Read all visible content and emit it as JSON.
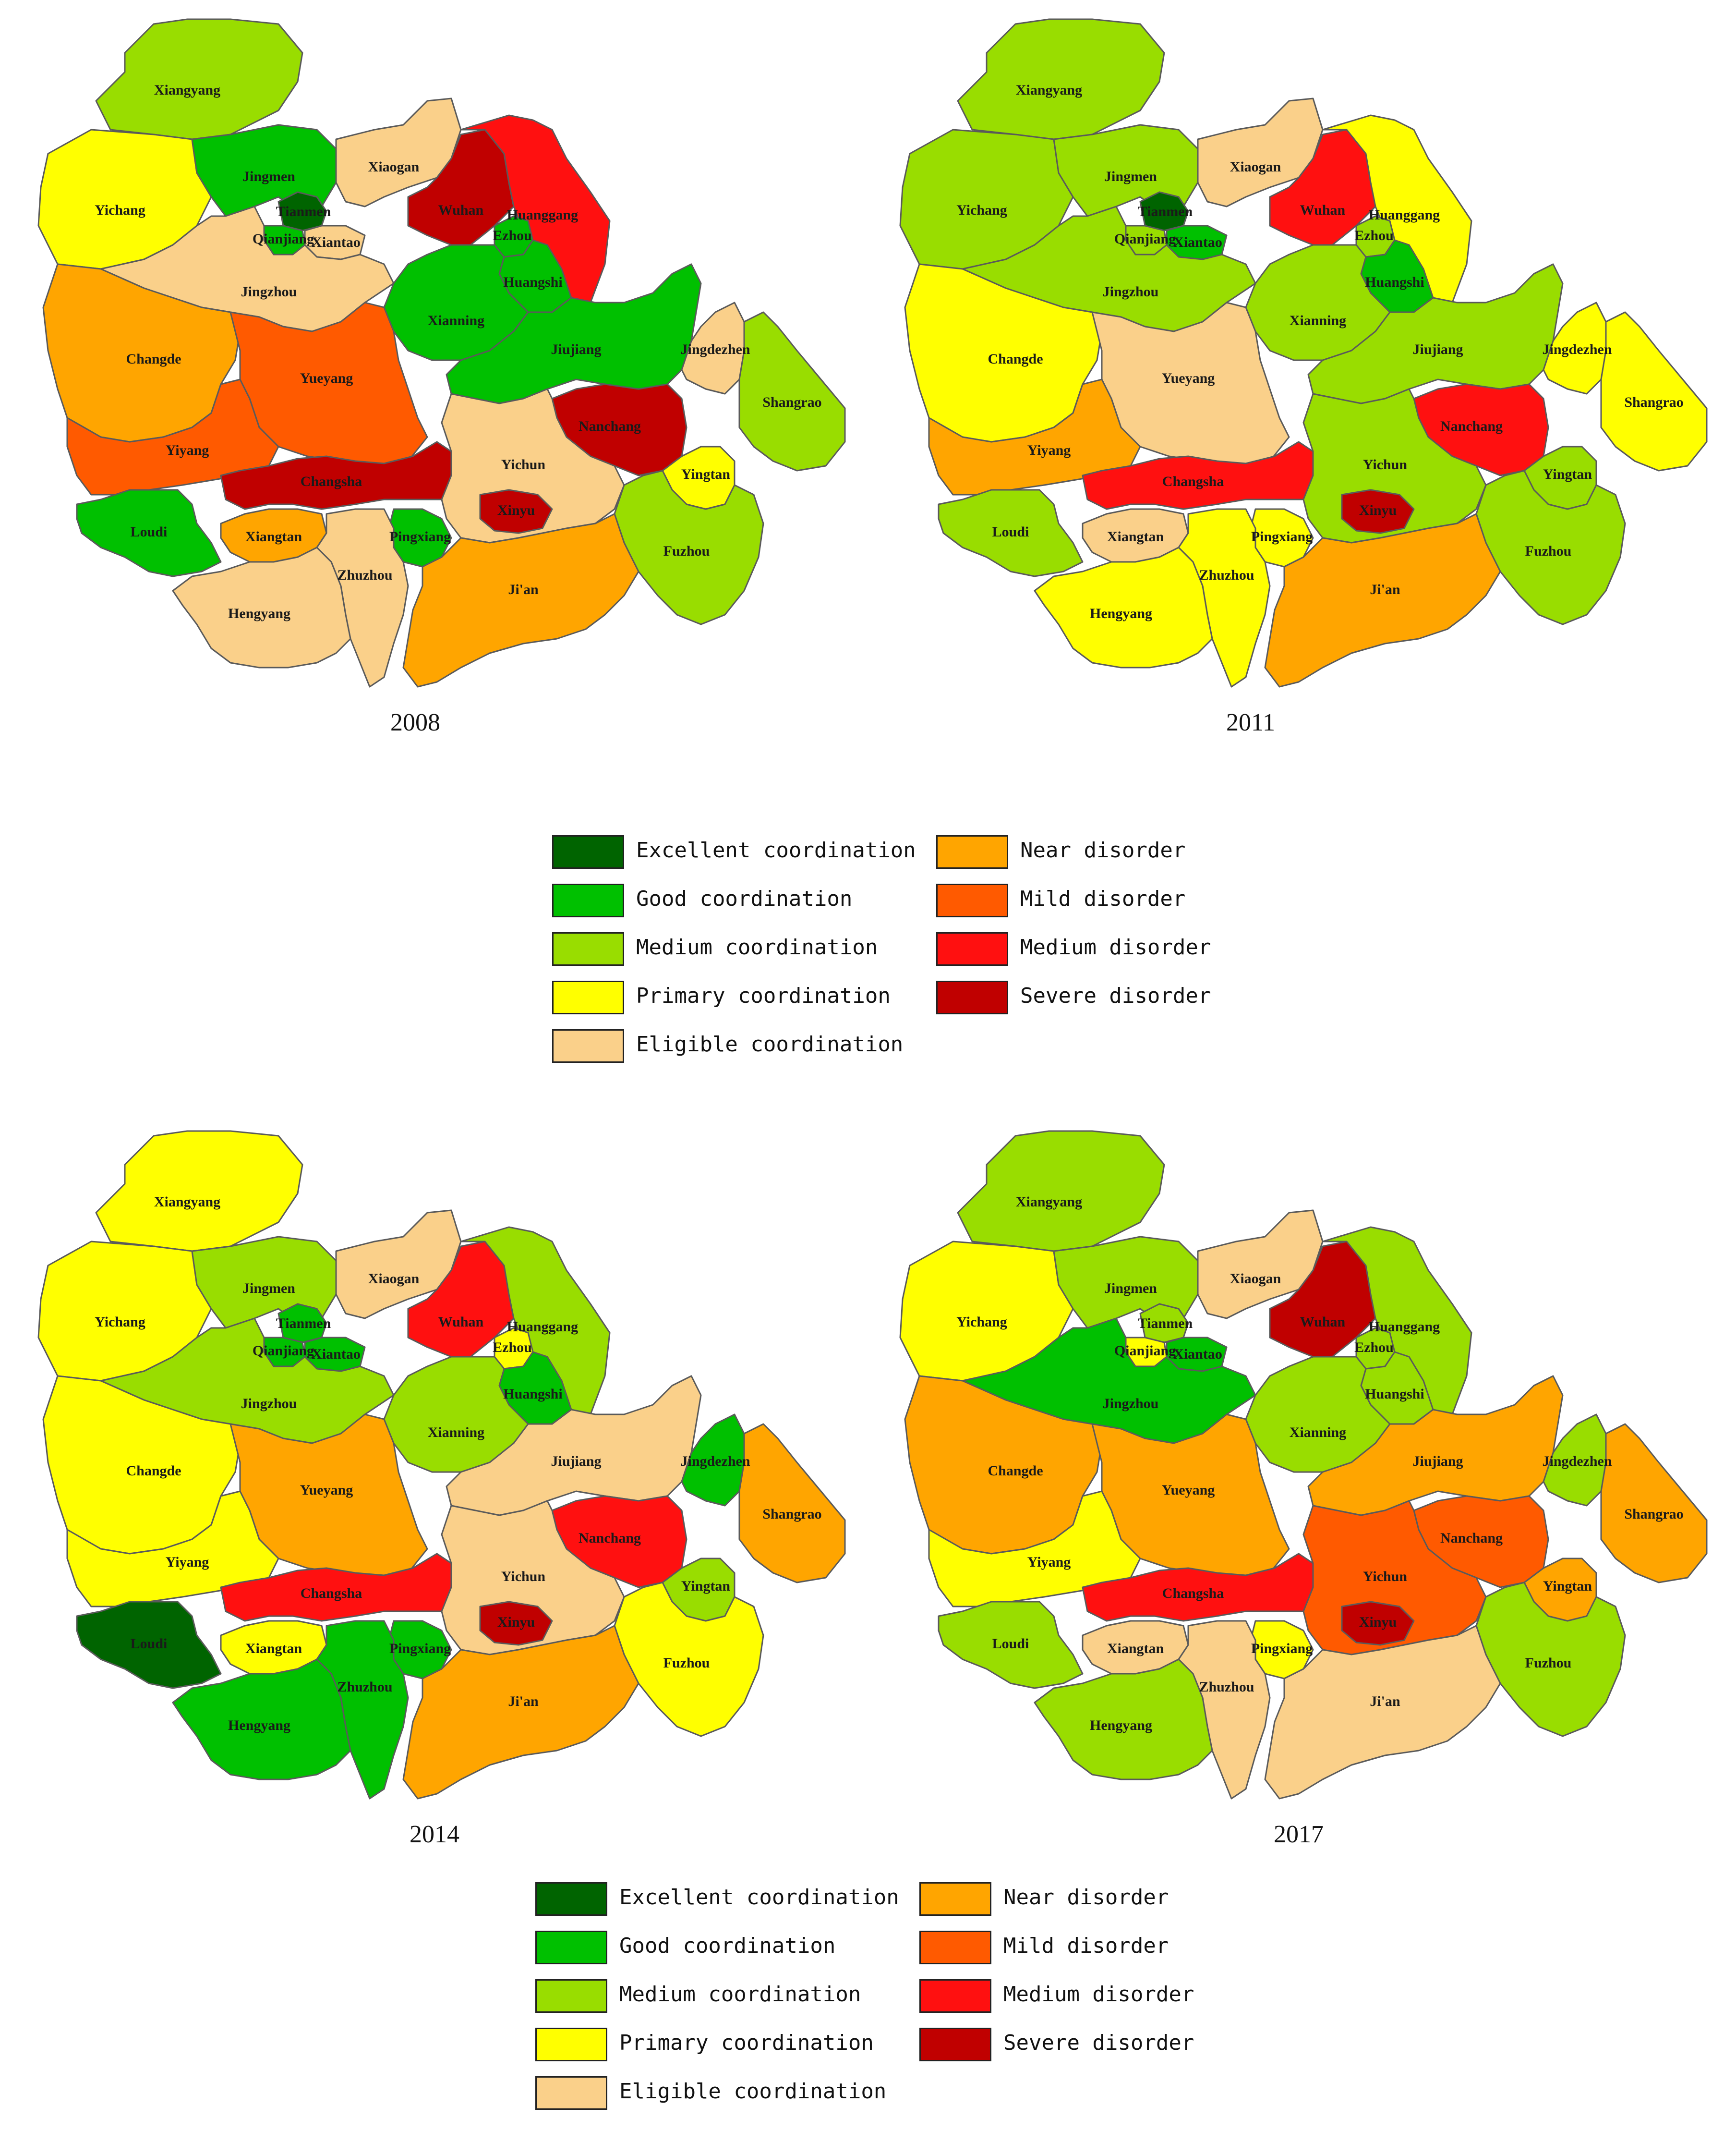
{
  "legend_items": [
    {
      "key": "excellent",
      "label": "Excellent coordination",
      "color": "#006400"
    },
    {
      "key": "good",
      "label": "Good coordination",
      "color": "#00c000"
    },
    {
      "key": "medium",
      "label": "Medium coordination",
      "color": "#99dd00"
    },
    {
      "key": "primary",
      "label": "Primary coordination",
      "color": "#ffff00"
    },
    {
      "key": "eligible",
      "label": "Eligible coordination",
      "color": "#fad08a"
    },
    {
      "key": "near",
      "label": "Near disorder",
      "color": "#ffa500"
    },
    {
      "key": "mild",
      "label": "Mild disorder",
      "color": "#ff5a00"
    },
    {
      "key": "mediumdis",
      "label": "Medium disorder",
      "color": "#ff1010"
    },
    {
      "key": "severe",
      "label": "Severe disorder",
      "color": "#c00000"
    }
  ],
  "cities": [
    "Xiangyang",
    "Yichang",
    "Jingmen",
    "Xiaogan",
    "Wuhan",
    "Huanggang",
    "Tianmen",
    "Qianjiang",
    "Xiantao",
    "Ezhou",
    "Huangshi",
    "Jingzhou",
    "Xianning",
    "Jiujiang",
    "Jingdezhen",
    "Shangrao",
    "Changde",
    "Yueyang",
    "Nanchang",
    "Yiyang",
    "Changsha",
    "Yichun",
    "Yingtan",
    "Loudi",
    "Xiangtan",
    "Pingxiang",
    "Xinyu",
    "Fuzhou",
    "Zhuzhou",
    "Hengyang",
    "Ji'an"
  ],
  "maps": [
    {
      "year": "2008",
      "classes": {
        "Xiangyang": "medium",
        "Yichang": "primary",
        "Jingmen": "good",
        "Xiaogan": "eligible",
        "Wuhan": "severe",
        "Huanggang": "mediumdis",
        "Tianmen": "excellent",
        "Qianjiang": "good",
        "Xiantao": "eligible",
        "Ezhou": "good",
        "Huangshi": "good",
        "Jingzhou": "eligible",
        "Xianning": "good",
        "Jiujiang": "good",
        "Jingdezhen": "eligible",
        "Shangrao": "medium",
        "Changde": "near",
        "Yueyang": "mild",
        "Nanchang": "severe",
        "Yiyang": "mild",
        "Changsha": "severe",
        "Yichun": "eligible",
        "Yingtan": "primary",
        "Loudi": "good",
        "Xiangtan": "near",
        "Pingxiang": "good",
        "Xinyu": "severe",
        "Fuzhou": "medium",
        "Zhuzhou": "eligible",
        "Hengyang": "eligible",
        "Ji'an": "near"
      }
    },
    {
      "year": "2011",
      "classes": {
        "Xiangyang": "medium",
        "Yichang": "medium",
        "Jingmen": "medium",
        "Xiaogan": "eligible",
        "Wuhan": "mediumdis",
        "Huanggang": "primary",
        "Tianmen": "excellent",
        "Qianjiang": "medium",
        "Xiantao": "good",
        "Ezhou": "medium",
        "Huangshi": "good",
        "Jingzhou": "medium",
        "Xianning": "medium",
        "Jiujiang": "medium",
        "Jingdezhen": "primary",
        "Shangrao": "primary",
        "Changde": "primary",
        "Yueyang": "eligible",
        "Nanchang": "mediumdis",
        "Yiyang": "near",
        "Changsha": "mediumdis",
        "Yichun": "medium",
        "Yingtan": "medium",
        "Loudi": "medium",
        "Xiangtan": "eligible",
        "Pingxiang": "primary",
        "Xinyu": "severe",
        "Fuzhou": "medium",
        "Zhuzhou": "primary",
        "Hengyang": "primary",
        "Ji'an": "near"
      }
    },
    {
      "year": "2014",
      "classes": {
        "Xiangyang": "primary",
        "Yichang": "primary",
        "Jingmen": "medium",
        "Xiaogan": "eligible",
        "Wuhan": "mediumdis",
        "Huanggang": "medium",
        "Tianmen": "good",
        "Qianjiang": "good",
        "Xiantao": "good",
        "Ezhou": "primary",
        "Huangshi": "good",
        "Jingzhou": "medium",
        "Xianning": "medium",
        "Jiujiang": "eligible",
        "Jingdezhen": "good",
        "Shangrao": "near",
        "Changde": "primary",
        "Yueyang": "near",
        "Nanchang": "mediumdis",
        "Yiyang": "primary",
        "Changsha": "mediumdis",
        "Yichun": "eligible",
        "Yingtan": "medium",
        "Loudi": "excellent",
        "Xiangtan": "primary",
        "Pingxiang": "good",
        "Xinyu": "severe",
        "Fuzhou": "primary",
        "Zhuzhou": "good",
        "Hengyang": "good",
        "Ji'an": "near"
      }
    },
    {
      "year": "2017",
      "classes": {
        "Xiangyang": "medium",
        "Yichang": "primary",
        "Jingmen": "medium",
        "Xiaogan": "eligible",
        "Wuhan": "severe",
        "Huanggang": "medium",
        "Tianmen": "medium",
        "Qianjiang": "primary",
        "Xiantao": "good",
        "Ezhou": "medium",
        "Huangshi": "medium",
        "Jingzhou": "good",
        "Xianning": "medium",
        "Jiujiang": "near",
        "Jingdezhen": "medium",
        "Shangrao": "near",
        "Changde": "near",
        "Yueyang": "near",
        "Nanchang": "mild",
        "Yiyang": "primary",
        "Changsha": "mediumdis",
        "Yichun": "mild",
        "Yingtan": "near",
        "Loudi": "medium",
        "Xiangtan": "eligible",
        "Pingxiang": "primary",
        "Xinyu": "severe",
        "Fuzhou": "medium",
        "Zhuzhou": "eligible",
        "Hengyang": "medium",
        "Ji'an": "eligible"
      }
    }
  ]
}
